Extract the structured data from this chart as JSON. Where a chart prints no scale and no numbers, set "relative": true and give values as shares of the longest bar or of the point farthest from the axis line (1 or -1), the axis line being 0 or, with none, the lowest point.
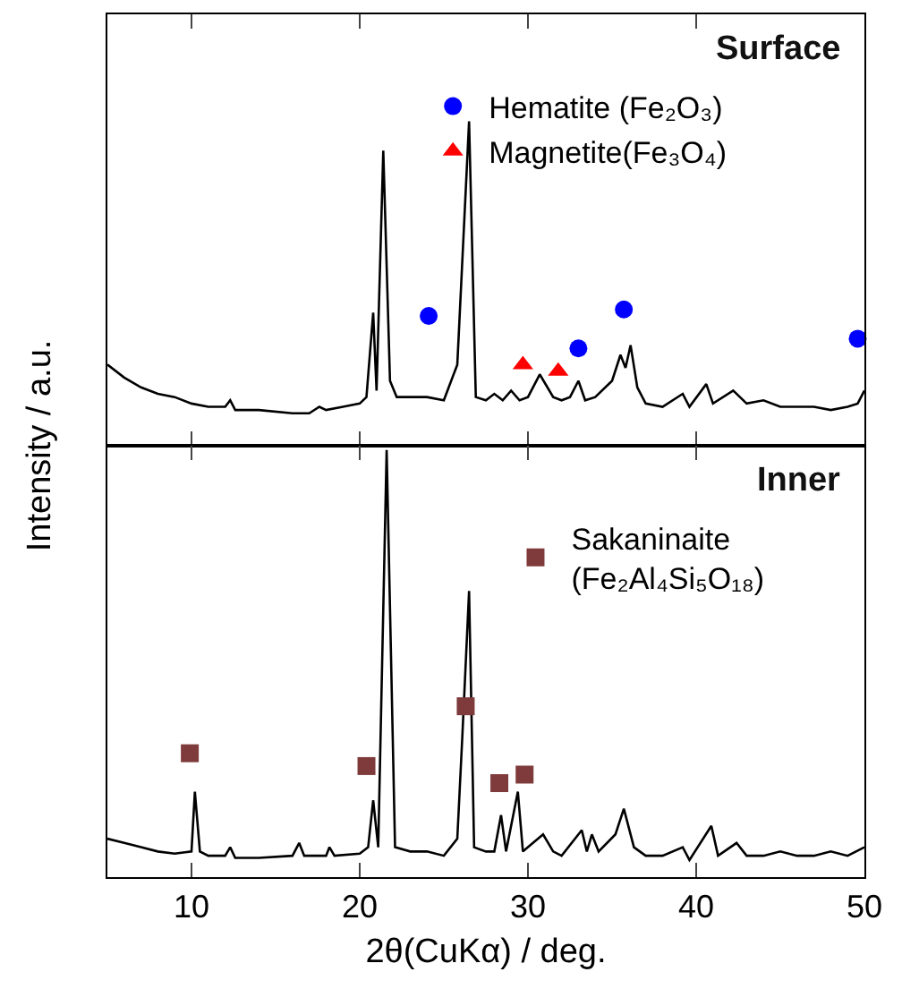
{
  "chart_data": [
    {
      "type": "line",
      "title": "Surface",
      "ylabel": "Intensity / a.u.",
      "relative": true,
      "xlim": [
        5,
        50
      ],
      "xticks": [
        10,
        20,
        30,
        40,
        50
      ],
      "tick_labels": false,
      "legend": "top right",
      "grid": false,
      "series": [
        {
          "color": "#000000",
          "marker": "none",
          "line_style": "solid",
          "x": [
            5,
            6,
            7,
            8,
            9,
            10,
            11,
            12,
            12.3,
            12.6,
            14,
            16,
            17,
            17.6,
            18,
            19,
            20,
            20.4,
            20.8,
            21.0,
            21.4,
            21.8,
            22.2,
            23,
            24,
            25,
            25.8,
            26.5,
            26.9,
            27.5,
            28,
            28.5,
            29,
            29.5,
            30,
            30.7,
            31.5,
            32,
            32.5,
            33.0,
            33.4,
            34,
            35,
            35.5,
            35.8,
            36.1,
            36.5,
            37,
            38,
            39.2,
            39.6,
            40.6,
            41,
            42.2,
            43,
            44,
            45,
            46,
            47,
            48,
            49,
            49.6,
            50
          ],
          "values": [
            0.25,
            0.21,
            0.18,
            0.16,
            0.15,
            0.13,
            0.12,
            0.12,
            0.14,
            0.11,
            0.11,
            0.1,
            0.1,
            0.12,
            0.11,
            0.12,
            0.13,
            0.15,
            0.41,
            0.17,
            0.91,
            0.2,
            0.15,
            0.15,
            0.15,
            0.14,
            0.25,
            1.0,
            0.15,
            0.14,
            0.16,
            0.14,
            0.17,
            0.14,
            0.15,
            0.22,
            0.15,
            0.14,
            0.15,
            0.2,
            0.14,
            0.15,
            0.2,
            0.28,
            0.24,
            0.31,
            0.18,
            0.13,
            0.12,
            0.16,
            0.12,
            0.19,
            0.13,
            0.17,
            0.13,
            0.14,
            0.12,
            0.12,
            0.12,
            0.11,
            0.12,
            0.13,
            0.17
          ]
        },
        {
          "type": "scatter",
          "name": "Hematite (Fe₂O₃)",
          "color": "#0000ff",
          "marker": "circle",
          "x": [
            24.1,
            33.0,
            35.7,
            49.6
          ],
          "values": [
            0.4,
            0.3,
            0.42,
            0.33
          ]
        },
        {
          "type": "scatter",
          "name": "Magnetite(Fe₃O₄)",
          "color": "#ff0000",
          "marker": "triangle",
          "x": [
            29.7,
            31.8
          ],
          "values": [
            0.25,
            0.23
          ]
        }
      ]
    },
    {
      "type": "line",
      "title": "Inner",
      "xlabel": "2θ(CuKα) / deg.",
      "relative": true,
      "xlim": [
        5,
        50
      ],
      "xticks": [
        10,
        20,
        30,
        40,
        50
      ],
      "tick_labels": "x",
      "legend": "top right",
      "grid": false,
      "series": [
        {
          "color": "#000000",
          "marker": "none",
          "line_style": "solid",
          "x": [
            5,
            6,
            7,
            8,
            9,
            10,
            10.2,
            10.5,
            11,
            12,
            12.3,
            12.6,
            14,
            16,
            16.4,
            16.7,
            18,
            18.2,
            18.5,
            20,
            20.5,
            20.8,
            21.1,
            21.6,
            22.1,
            23,
            24,
            25,
            25.8,
            26.1,
            26.5,
            26.8,
            27.5,
            28.0,
            28.4,
            28.7,
            29.4,
            29.7,
            30.9,
            31.5,
            32,
            33.2,
            33.5,
            33.8,
            34.2,
            35.2,
            35.7,
            36.3,
            37,
            38,
            39.2,
            39.6,
            40.9,
            41.3,
            42.4,
            43,
            44,
            45,
            46,
            47,
            48,
            49,
            50
          ],
          "values": [
            0.09,
            0.08,
            0.07,
            0.06,
            0.055,
            0.06,
            0.2,
            0.06,
            0.05,
            0.05,
            0.07,
            0.045,
            0.045,
            0.05,
            0.08,
            0.05,
            0.05,
            0.07,
            0.05,
            0.055,
            0.07,
            0.18,
            0.07,
            1.0,
            0.07,
            0.06,
            0.06,
            0.05,
            0.09,
            0.33,
            0.67,
            0.07,
            0.06,
            0.06,
            0.145,
            0.06,
            0.2,
            0.06,
            0.1,
            0.06,
            0.05,
            0.11,
            0.06,
            0.1,
            0.06,
            0.1,
            0.16,
            0.07,
            0.05,
            0.05,
            0.07,
            0.04,
            0.12,
            0.05,
            0.08,
            0.05,
            0.05,
            0.06,
            0.05,
            0.05,
            0.06,
            0.05,
            0.07
          ]
        },
        {
          "type": "scatter",
          "name": "Sakaninaite\n(Fe₂Al₄Si₅O₁₈)",
          "color": "#7f3b3b",
          "marker": "square",
          "x": [
            9.9,
            20.4,
            26.3,
            28.3,
            29.8
          ],
          "values": [
            0.29,
            0.26,
            0.4,
            0.22,
            0.24
          ]
        }
      ]
    }
  ]
}
